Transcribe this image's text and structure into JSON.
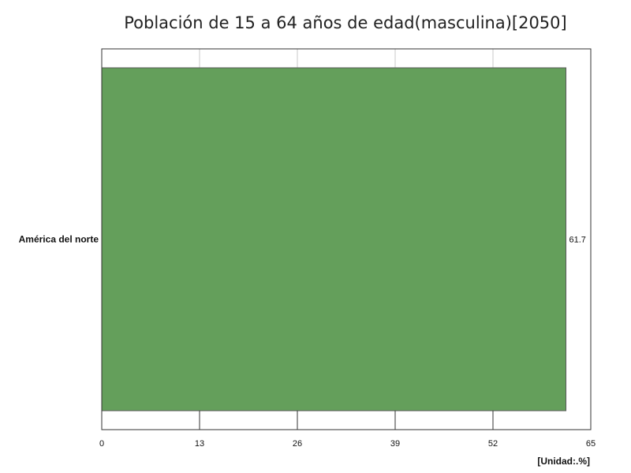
{
  "chart_data": {
    "type": "bar",
    "orientation": "horizontal",
    "title": "Población de 15 a 64 años de edad(masculina)[2050]",
    "categories": [
      "América del norte"
    ],
    "series": [
      {
        "values": [
          61.7
        ],
        "color": "#649f5b"
      }
    ],
    "data_labels": [
      "61.7"
    ],
    "xlim": [
      0,
      65
    ],
    "x_ticks": [
      0,
      13,
      26,
      39,
      52,
      65
    ],
    "unit_label": "[Unidad:.%]",
    "grid": true,
    "legend": "none"
  }
}
